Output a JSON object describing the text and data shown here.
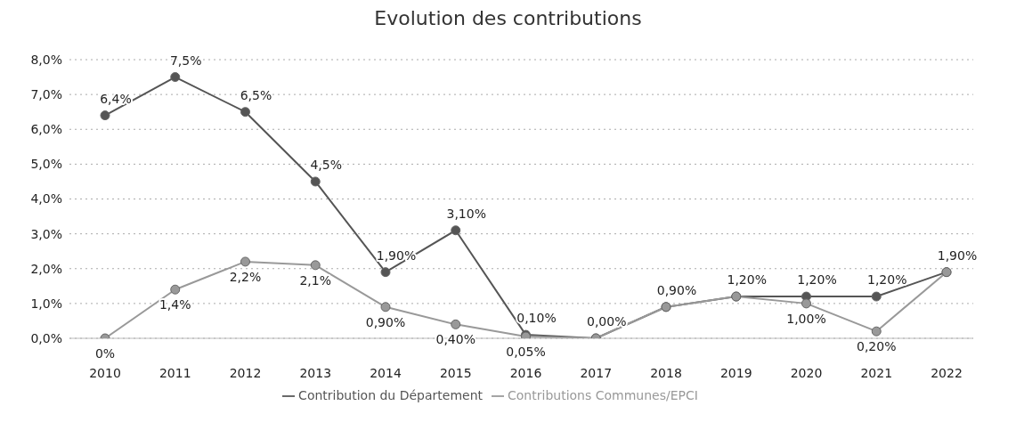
{
  "chart_data": {
    "type": "line",
    "title": "Evolution des contributions",
    "categories": [
      "2010",
      "2011",
      "2012",
      "2013",
      "2014",
      "2015",
      "2016",
      "2017",
      "2018",
      "2019",
      "2020",
      "2021",
      "2022"
    ],
    "series": [
      {
        "name": "Contribution du Département",
        "color": "#555555",
        "values": [
          6.4,
          7.5,
          6.5,
          4.5,
          1.9,
          3.1,
          0.1,
          0,
          0.9,
          1.2,
          1.2,
          1.2,
          1.9
        ],
        "value_labels": [
          "6,4%",
          "7,5%",
          "6,5%",
          "4,5%",
          "1,90%",
          "3,10%",
          "0,10%",
          "0,00%",
          "0,90%",
          "1,20%",
          "1,20%",
          "1,20%",
          "1,90%"
        ]
      },
      {
        "name": "Contributions Communes/EPCI",
        "color": "#999999",
        "values": [
          0,
          1.4,
          2.2,
          2.1,
          0.9,
          0.4,
          0.05,
          0,
          0.9,
          1.2,
          1,
          0.2,
          1.9
        ],
        "value_labels": [
          "0%",
          "1,4%",
          "2,2%",
          "2,1%",
          "0,90%",
          "0,40%",
          "0,05%",
          null,
          null,
          null,
          "1,00%",
          "0,20%",
          null
        ]
      }
    ],
    "ylim": [
      0,
      8
    ],
    "yticks": [
      {
        "value": 0,
        "label": "0,0%"
      },
      {
        "value": 1,
        "label": "1,0%"
      },
      {
        "value": 2,
        "label": "2,0%"
      },
      {
        "value": 3,
        "label": "3,0%"
      },
      {
        "value": 4,
        "label": "4,0%"
      },
      {
        "value": 5,
        "label": "5,0%"
      },
      {
        "value": 6,
        "label": "6,0%"
      },
      {
        "value": 7,
        "label": "7,0%"
      },
      {
        "value": 8,
        "label": "8,0%"
      }
    ],
    "grid": "y",
    "legend": "bottom",
    "marker": "circle",
    "line_style": "solid"
  }
}
